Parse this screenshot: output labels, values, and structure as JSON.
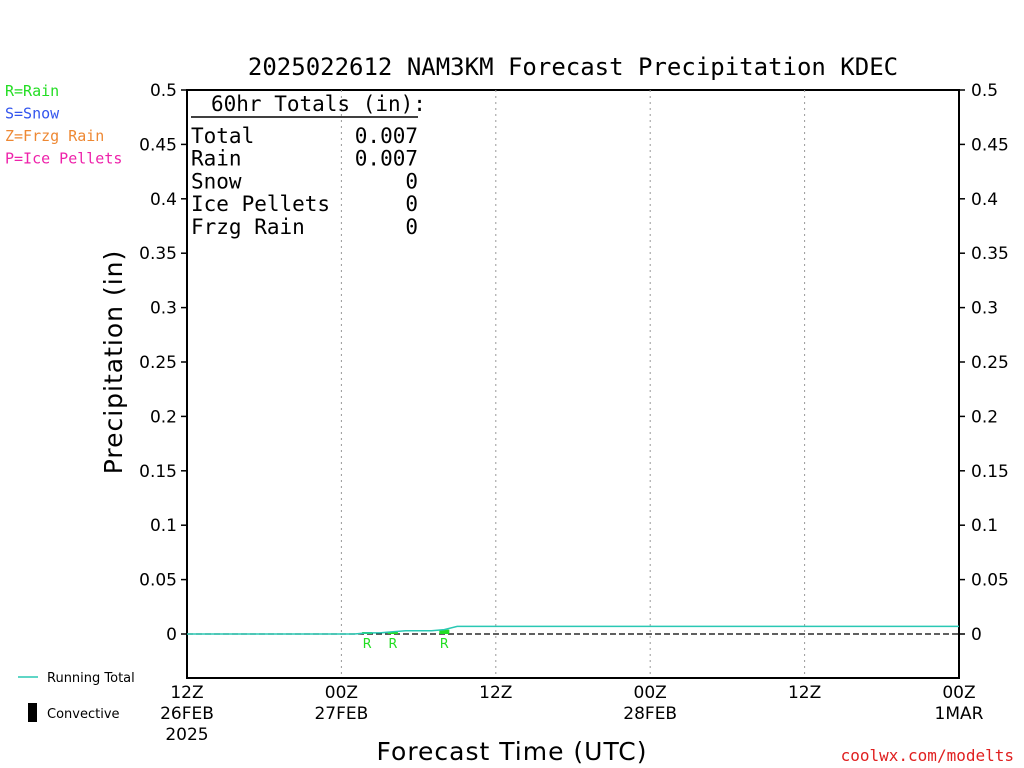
{
  "chart_data": {
    "type": "line",
    "title": "2025022612 NAM3KM Forecast Precipitation KDEC",
    "xlabel": "Forecast Time (UTC)",
    "ylabel": "Precipitation (in)",
    "ylim": [
      0,
      0.5
    ],
    "xlim_hours": [
      0,
      60
    ],
    "y_ticks": [
      "0",
      "0.05",
      "0.1",
      "0.15",
      "0.2",
      "0.25",
      "0.3",
      "0.35",
      "0.4",
      "0.45",
      "0.5"
    ],
    "x_ticks": [
      {
        "hour": 0,
        "line1": "12Z",
        "line2": "26FEB",
        "line3": "2025"
      },
      {
        "hour": 12,
        "line1": "00Z",
        "line2": "27FEB",
        "line3": ""
      },
      {
        "hour": 24,
        "line1": "12Z",
        "line2": "",
        "line3": ""
      },
      {
        "hour": 36,
        "line1": "00Z",
        "line2": "28FEB",
        "line3": ""
      },
      {
        "hour": 48,
        "line1": "12Z",
        "line2": "",
        "line3": ""
      },
      {
        "hour": 60,
        "line1": "00Z",
        "line2": "1MAR",
        "line3": ""
      }
    ],
    "grid": "vertical dashed at 12h intervals",
    "series": [
      {
        "name": "Running Total",
        "color": "#2ac8b4",
        "x": [
          0,
          13,
          14,
          15,
          16,
          17,
          18,
          19,
          20,
          21,
          60
        ],
        "y": [
          0,
          0,
          0.001,
          0.001,
          0.002,
          0.003,
          0.003,
          0.003,
          0.004,
          0.007,
          0.007
        ]
      }
    ],
    "precip_bars": [
      {
        "hour": 14,
        "value": 0.001,
        "type": "R"
      },
      {
        "hour": 16,
        "value": 0.001,
        "type": "R"
      },
      {
        "hour": 20,
        "value": 0.004,
        "type": "R"
      }
    ],
    "zero_line": "dashed"
  },
  "legend_top": [
    {
      "text": "R=Rain",
      "color": "#22dd22"
    },
    {
      "text": "S=Snow",
      "color": "#3355ee"
    },
    {
      "text": "Z=Frzg Rain",
      "color": "#ee8833"
    },
    {
      "text": "P=Ice Pellets",
      "color": "#ee22aa"
    }
  ],
  "totals_box": {
    "header": "60hr Totals (in):",
    "rows": [
      {
        "label": "Total",
        "value": "0.007"
      },
      {
        "label": "Rain",
        "value": "0.007"
      },
      {
        "label": "Snow",
        "value": "0"
      },
      {
        "label": "Ice Pellets",
        "value": "0"
      },
      {
        "label": "Frzg Rain",
        "value": "0"
      }
    ]
  },
  "legend_bottom": {
    "running_total": "Running Total",
    "convective": "Convective"
  },
  "credit": "coolwx.com/modelts",
  "colors": {
    "rain": "#22dd22",
    "running_total": "#2ac8b4",
    "credit": "#e02020",
    "grid": "#999999"
  }
}
